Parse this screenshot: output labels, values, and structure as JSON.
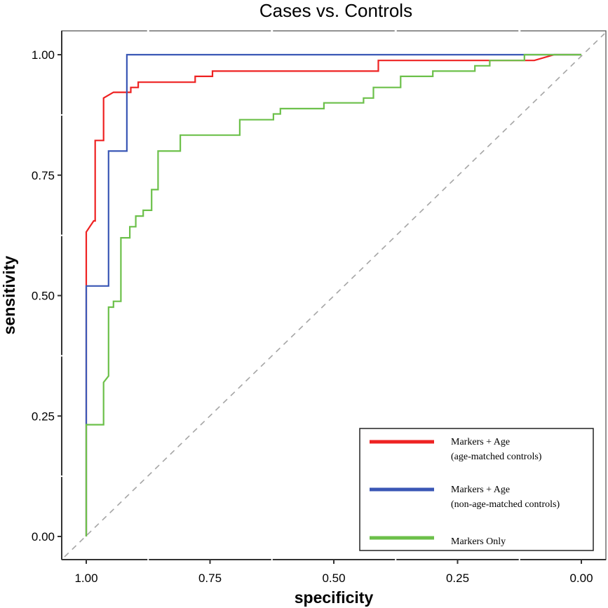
{
  "chart_data": {
    "type": "line",
    "title": "Cases vs. Controls",
    "xlabel": "specificity",
    "ylabel": "sensitivity",
    "xlim": [
      1.0,
      0.0
    ],
    "ylim": [
      0.0,
      1.0
    ],
    "x_reversed": true,
    "xticks": [
      1.0,
      0.75,
      0.5,
      0.25,
      0.0
    ],
    "xtick_labels": [
      "1.00",
      "0.75",
      "0.50",
      "0.25",
      "0.00"
    ],
    "yticks": [
      0.0,
      0.25,
      0.5,
      0.75,
      1.0
    ],
    "ytick_labels": [
      "0.00",
      "0.25",
      "0.50",
      "0.75",
      "1.00"
    ],
    "grid": false,
    "legend_position": "bottom-right",
    "reference_line": {
      "from": [
        1.0,
        0.0
      ],
      "to": [
        0.0,
        1.0
      ],
      "style": "dashed",
      "color": "#a6a6a6"
    },
    "series": [
      {
        "name": "Markers + Age (age-matched controls)",
        "label_lines": [
          "Markers + Age",
          "(age-matched controls)"
        ],
        "color": "#ee2222",
        "points": [
          [
            1.0,
            0.0
          ],
          [
            1.0,
            0.52
          ],
          [
            1.0,
            0.632
          ],
          [
            0.985,
            0.655
          ],
          [
            0.982,
            0.655
          ],
          [
            0.982,
            0.822
          ],
          [
            0.965,
            0.822
          ],
          [
            0.965,
            0.91
          ],
          [
            0.945,
            0.922
          ],
          [
            0.91,
            0.922
          ],
          [
            0.91,
            0.932
          ],
          [
            0.895,
            0.932
          ],
          [
            0.895,
            0.943
          ],
          [
            0.78,
            0.943
          ],
          [
            0.78,
            0.955
          ],
          [
            0.745,
            0.955
          ],
          [
            0.745,
            0.966
          ],
          [
            0.41,
            0.966
          ],
          [
            0.41,
            0.988
          ],
          [
            0.115,
            0.988
          ],
          [
            0.095,
            0.988
          ],
          [
            0.055,
            1.0
          ],
          [
            0.0,
            1.0
          ]
        ]
      },
      {
        "name": "Markers + Age (non-age-matched controls)",
        "label_lines": [
          "Markers + Age",
          "(non-age-matched controls)"
        ],
        "color": "#3a57b5",
        "points": [
          [
            1.0,
            0.0
          ],
          [
            1.0,
            0.232
          ],
          [
            1.0,
            0.52
          ],
          [
            0.955,
            0.52
          ],
          [
            0.955,
            0.8
          ],
          [
            0.918,
            0.8
          ],
          [
            0.918,
            1.0
          ],
          [
            0.115,
            1.0
          ],
          [
            0.0,
            1.0
          ]
        ]
      },
      {
        "name": "Markers Only",
        "label_lines": [
          "Markers Only"
        ],
        "color": "#6cc04a",
        "points": [
          [
            1.0,
            0.0
          ],
          [
            1.0,
            0.232
          ],
          [
            0.965,
            0.232
          ],
          [
            0.965,
            0.32
          ],
          [
            0.955,
            0.333
          ],
          [
            0.955,
            0.476
          ],
          [
            0.945,
            0.476
          ],
          [
            0.945,
            0.488
          ],
          [
            0.93,
            0.488
          ],
          [
            0.93,
            0.62
          ],
          [
            0.912,
            0.62
          ],
          [
            0.912,
            0.643
          ],
          [
            0.9,
            0.643
          ],
          [
            0.9,
            0.665
          ],
          [
            0.885,
            0.665
          ],
          [
            0.885,
            0.677
          ],
          [
            0.868,
            0.677
          ],
          [
            0.868,
            0.72
          ],
          [
            0.855,
            0.72
          ],
          [
            0.855,
            0.8
          ],
          [
            0.81,
            0.8
          ],
          [
            0.81,
            0.833
          ],
          [
            0.69,
            0.833
          ],
          [
            0.69,
            0.865
          ],
          [
            0.622,
            0.865
          ],
          [
            0.622,
            0.877
          ],
          [
            0.608,
            0.877
          ],
          [
            0.608,
            0.888
          ],
          [
            0.52,
            0.888
          ],
          [
            0.52,
            0.9
          ],
          [
            0.44,
            0.9
          ],
          [
            0.44,
            0.91
          ],
          [
            0.42,
            0.91
          ],
          [
            0.42,
            0.932
          ],
          [
            0.365,
            0.932
          ],
          [
            0.365,
            0.955
          ],
          [
            0.3,
            0.955
          ],
          [
            0.3,
            0.966
          ],
          [
            0.215,
            0.966
          ],
          [
            0.215,
            0.977
          ],
          [
            0.185,
            0.977
          ],
          [
            0.185,
            0.988
          ],
          [
            0.115,
            0.988
          ],
          [
            0.115,
            1.0
          ],
          [
            0.0,
            1.0
          ]
        ]
      }
    ]
  }
}
